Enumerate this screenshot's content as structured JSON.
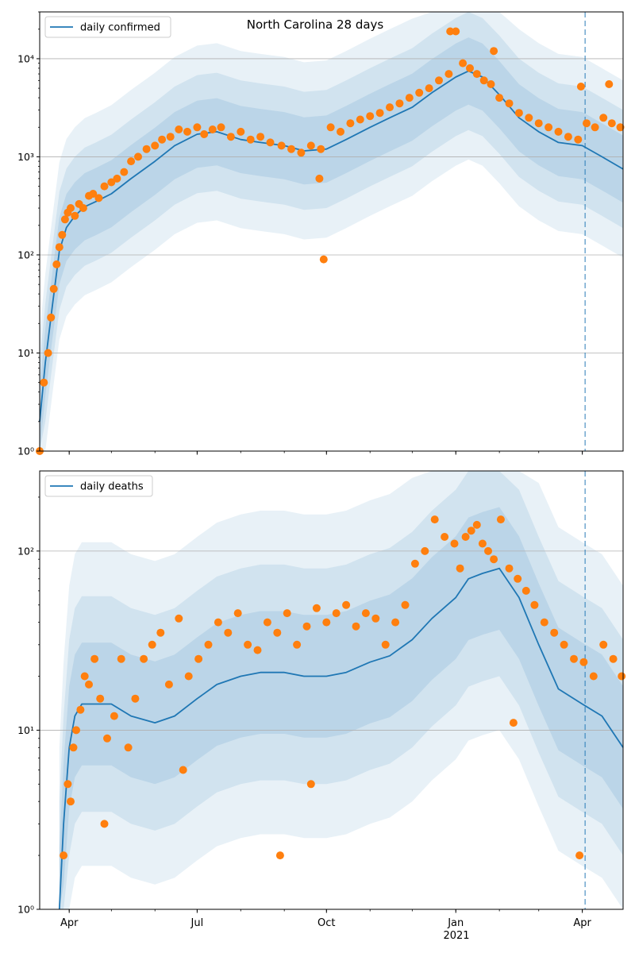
{
  "figure_title": "North Carolina 28 days",
  "colors": {
    "model_line": "#1f77b4",
    "observed_points": "#ff7f0e",
    "band": "#1f77b4",
    "grid": "#b0b0b0",
    "forecast_marker": "#1f77b4"
  },
  "chart_data": [
    {
      "type": "line",
      "title": "North Carolina 28 days",
      "yscale": "log",
      "ylim": [
        1,
        30000
      ],
      "xlim": [
        "2020-03-11",
        "2021-04-30"
      ],
      "grid": "horizontal major",
      "legend": {
        "position": "top-left",
        "entries": [
          "daily confirmed"
        ]
      },
      "x_tick_labels": [
        "Apr",
        "Jul",
        "Oct",
        "Jan",
        "Apr"
      ],
      "x_tick_dates": [
        "2020-04-01",
        "2020-07-01",
        "2020-10-01",
        "2021-01-01",
        "2021-04-01"
      ],
      "x_year_label": "2021",
      "y_tick_labels": [
        "10⁰",
        "10¹",
        "10²",
        "10³",
        "10⁴"
      ],
      "y_tick_values": [
        1,
        10,
        100,
        1000,
        10000
      ],
      "forecast_start": "2021-04-03",
      "series": [
        {
          "name": "daily confirmed",
          "kind": "model median",
          "x": [
            "2020-03-11",
            "2020-03-15",
            "2020-03-20",
            "2020-03-25",
            "2020-03-30",
            "2020-04-05",
            "2020-04-12",
            "2020-04-20",
            "2020-05-01",
            "2020-05-15",
            "2020-06-01",
            "2020-06-15",
            "2020-07-01",
            "2020-07-15",
            "2020-08-01",
            "2020-08-15",
            "2020-09-01",
            "2020-09-15",
            "2020-10-01",
            "2020-10-15",
            "2020-11-01",
            "2020-11-15",
            "2020-12-01",
            "2020-12-15",
            "2021-01-01",
            "2021-01-10",
            "2021-01-20",
            "2021-02-01",
            "2021-02-15",
            "2021-03-01",
            "2021-03-15",
            "2021-04-01",
            "2021-04-15",
            "2021-04-30"
          ],
          "values": [
            2,
            8,
            30,
            110,
            190,
            250,
            310,
            350,
            420,
            600,
            900,
            1300,
            1700,
            1800,
            1500,
            1400,
            1300,
            1150,
            1200,
            1500,
            2000,
            2500,
            3200,
            4500,
            6500,
            7500,
            6500,
            4300,
            2500,
            1800,
            1400,
            1300,
            1000,
            750
          ]
        },
        {
          "name": "",
          "kind": "observed",
          "x": [
            "2020-03-11",
            "2020-03-14",
            "2020-03-17",
            "2020-03-19",
            "2020-03-21",
            "2020-03-23",
            "2020-03-25",
            "2020-03-27",
            "2020-03-29",
            "2020-03-31",
            "2020-04-02",
            "2020-04-05",
            "2020-04-08",
            "2020-04-11",
            "2020-04-15",
            "2020-04-18",
            "2020-04-22",
            "2020-04-26",
            "2020-05-01",
            "2020-05-05",
            "2020-05-10",
            "2020-05-15",
            "2020-05-20",
            "2020-05-26",
            "2020-06-01",
            "2020-06-06",
            "2020-06-12",
            "2020-06-18",
            "2020-06-24",
            "2020-07-01",
            "2020-07-06",
            "2020-07-12",
            "2020-07-18",
            "2020-07-25",
            "2020-08-01",
            "2020-08-08",
            "2020-08-15",
            "2020-08-22",
            "2020-08-30",
            "2020-09-06",
            "2020-09-13",
            "2020-09-20",
            "2020-09-27",
            "2020-10-04",
            "2020-10-11",
            "2020-10-18",
            "2020-10-25",
            "2020-11-01",
            "2020-11-08",
            "2020-11-15",
            "2020-11-22",
            "2020-11-29",
            "2020-12-06",
            "2020-12-13",
            "2020-12-20",
            "2020-12-27",
            "2021-01-01",
            "2021-01-06",
            "2021-01-11",
            "2021-01-16",
            "2021-01-21",
            "2021-01-26",
            "2021-02-01",
            "2021-02-08",
            "2021-02-15",
            "2021-02-22",
            "2021-03-01",
            "2021-03-08",
            "2021-03-15",
            "2021-03-22",
            "2021-03-29",
            "2021-04-04",
            "2021-04-10",
            "2021-04-16",
            "2021-04-22",
            "2021-04-28",
            "2020-09-29",
            "2020-09-26",
            "2020-12-28",
            "2021-01-28",
            "2021-03-31",
            "2021-04-20"
          ],
          "values": [
            1,
            5,
            10,
            23,
            45,
            80,
            120,
            160,
            230,
            270,
            300,
            250,
            330,
            300,
            400,
            420,
            380,
            500,
            550,
            600,
            700,
            900,
            1000,
            1200,
            1300,
            1500,
            1600,
            1900,
            1800,
            2000,
            1700,
            1900,
            2000,
            1600,
            1800,
            1500,
            1600,
            1400,
            1300,
            1200,
            1100,
            1300,
            1200,
            2000,
            1800,
            2200,
            2400,
            2600,
            2800,
            3200,
            3500,
            4000,
            4500,
            5000,
            6000,
            7000,
            19000,
            9000,
            8000,
            7000,
            6000,
            5500,
            4000,
            3500,
            2800,
            2500,
            2200,
            2000,
            1800,
            1600,
            1500,
            2200,
            2000,
            2500,
            2200,
            2000,
            90,
            600,
            19000,
            12000,
            5200,
            5500
          ]
        }
      ]
    },
    {
      "type": "line",
      "title": "",
      "yscale": "log",
      "ylim": [
        1,
        280
      ],
      "xlim": [
        "2020-03-11",
        "2021-04-30"
      ],
      "grid": "horizontal major",
      "legend": {
        "position": "top-left",
        "entries": [
          "daily deaths"
        ]
      },
      "x_tick_labels": [
        "Apr",
        "Jul",
        "Oct",
        "Jan",
        "Apr"
      ],
      "x_tick_dates": [
        "2020-04-01",
        "2020-07-01",
        "2020-10-01",
        "2021-01-01",
        "2021-04-01"
      ],
      "x_year_label": "2021",
      "y_tick_labels": [
        "10⁰",
        "10¹",
        "10²"
      ],
      "y_tick_values": [
        1,
        10,
        100
      ],
      "forecast_start": "2021-04-03",
      "series": [
        {
          "name": "daily deaths",
          "kind": "model median",
          "x": [
            "2020-03-25",
            "2020-03-28",
            "2020-04-01",
            "2020-04-05",
            "2020-04-10",
            "2020-04-20",
            "2020-05-01",
            "2020-05-15",
            "2020-06-01",
            "2020-06-15",
            "2020-07-01",
            "2020-07-15",
            "2020-08-01",
            "2020-08-15",
            "2020-09-01",
            "2020-09-15",
            "2020-10-01",
            "2020-10-15",
            "2020-11-01",
            "2020-11-15",
            "2020-12-01",
            "2020-12-15",
            "2021-01-01",
            "2021-01-10",
            "2021-01-20",
            "2021-02-01",
            "2021-02-15",
            "2021-03-01",
            "2021-03-15",
            "2021-04-01",
            "2021-04-15",
            "2021-04-30"
          ],
          "values": [
            1,
            3,
            8,
            12,
            14,
            14,
            14,
            12,
            11,
            12,
            15,
            18,
            20,
            21,
            21,
            20,
            20,
            21,
            24,
            26,
            32,
            42,
            55,
            70,
            75,
            80,
            55,
            30,
            17,
            14,
            12,
            8
          ]
        },
        {
          "name": "",
          "kind": "observed",
          "x": [
            "2020-03-28",
            "2020-03-31",
            "2020-04-02",
            "2020-04-04",
            "2020-04-06",
            "2020-04-09",
            "2020-04-12",
            "2020-04-15",
            "2020-04-19",
            "2020-04-23",
            "2020-04-28",
            "2020-05-03",
            "2020-05-08",
            "2020-05-13",
            "2020-05-18",
            "2020-05-24",
            "2020-05-30",
            "2020-06-05",
            "2020-06-11",
            "2020-06-18",
            "2020-06-25",
            "2020-07-02",
            "2020-07-09",
            "2020-07-16",
            "2020-07-23",
            "2020-07-30",
            "2020-08-06",
            "2020-08-13",
            "2020-08-20",
            "2020-08-27",
            "2020-09-03",
            "2020-09-10",
            "2020-09-17",
            "2020-09-24",
            "2020-10-01",
            "2020-10-08",
            "2020-10-15",
            "2020-10-22",
            "2020-10-29",
            "2020-11-05",
            "2020-11-12",
            "2020-11-19",
            "2020-11-26",
            "2020-12-03",
            "2020-12-10",
            "2020-12-17",
            "2020-12-24",
            "2020-12-31",
            "2021-01-04",
            "2021-01-08",
            "2021-01-12",
            "2021-01-16",
            "2021-01-20",
            "2021-01-24",
            "2021-01-28",
            "2021-02-02",
            "2021-02-08",
            "2021-02-14",
            "2021-02-20",
            "2021-02-26",
            "2021-03-05",
            "2021-03-12",
            "2021-03-19",
            "2021-03-26",
            "2021-04-02",
            "2021-04-09",
            "2021-04-16",
            "2021-04-23",
            "2021-04-29",
            "2020-04-26",
            "2020-06-21",
            "2020-08-29",
            "2020-09-20",
            "2021-03-30",
            "2021-02-11"
          ],
          "values": [
            2,
            5,
            4,
            8,
            10,
            13,
            20,
            18,
            25,
            15,
            9,
            12,
            25,
            8,
            15,
            25,
            30,
            35,
            18,
            42,
            20,
            25,
            30,
            40,
            35,
            45,
            30,
            28,
            40,
            35,
            45,
            30,
            38,
            48,
            40,
            45,
            50,
            38,
            45,
            42,
            30,
            40,
            50,
            85,
            100,
            150,
            120,
            110,
            80,
            120,
            130,
            140,
            110,
            100,
            90,
            150,
            80,
            70,
            60,
            50,
            40,
            35,
            30,
            25,
            24,
            20,
            30,
            25,
            20,
            3,
            6,
            2,
            5,
            2,
            11
          ]
        }
      ]
    }
  ]
}
